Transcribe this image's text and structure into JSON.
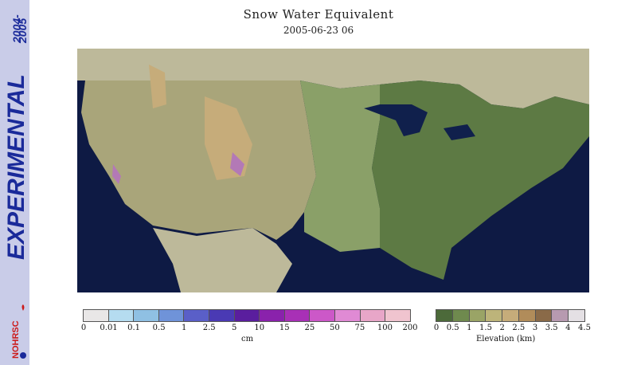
{
  "sidebar": {
    "years_top": "2004-",
    "years_bottom": "2005",
    "experimental": "EXPERIMENTAL",
    "logo_text": "NOHRSC"
  },
  "title": "Snow Water Equivalent",
  "subtitle": "2005-06-23 06",
  "swe_legend": {
    "unit": "cm",
    "labels": [
      "0",
      "0.01",
      "0.1",
      "0.5",
      "1",
      "2.5",
      "5",
      "10",
      "15",
      "25",
      "50",
      "75",
      "100",
      "200"
    ],
    "colors": [
      "#e9e7e7",
      "#b5dcf0",
      "#8fc0e3",
      "#6f93d9",
      "#5a5fc8",
      "#4a3ab4",
      "#5a1e9e",
      "#8a22ac",
      "#a830b6",
      "#cc58c8",
      "#e08ad4",
      "#e8a6c8",
      "#f0c4cf"
    ]
  },
  "elevation_legend": {
    "unit": "Elevation (km)",
    "labels": [
      "0",
      "0.5",
      "1",
      "1.5",
      "2",
      "2.5",
      "3",
      "3.5",
      "4",
      "4.5"
    ],
    "colors": [
      "#4c6a3a",
      "#6f8a4e",
      "#9aa466",
      "#bdb47a",
      "#c6ac7a",
      "#b18c5a",
      "#8a6a48",
      "#b79ab0",
      "#e4e0e4"
    ]
  },
  "map_colors": {
    "ocean": "#0e1a44",
    "land_outside": "#bdb99a",
    "east": "#5d7a44",
    "plains": "#8aa068",
    "west": "#a9a57a",
    "high": "#c6ac7a",
    "snow": "#b379b6",
    "lakes": "#10204c"
  }
}
